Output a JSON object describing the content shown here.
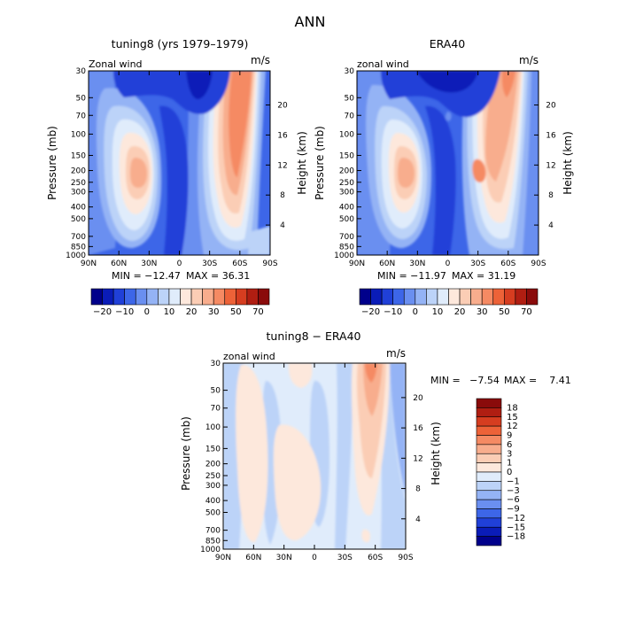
{
  "figure_title": "ANN",
  "chart_data": [
    {
      "type": "heatmap",
      "title": "tuning8 (yrs 1979–1979)",
      "field_label": "Zonal wind",
      "units": "m/s",
      "ylabel": "Pressure (mb)",
      "y2label": "Height (km)",
      "x_ticks": [
        "90N",
        "60N",
        "30N",
        "0",
        "30S",
        "60S",
        "90S"
      ],
      "y_ticks": [
        "30",
        "50",
        "70",
        "100",
        "150",
        "200",
        "250",
        "300",
        "400",
        "500",
        "700",
        "850",
        "1000"
      ],
      "y2_ticks": [
        "20",
        "16",
        "12",
        "8",
        "4"
      ],
      "min_label": "MIN = −12.47",
      "max_label": "MAX =  36.31",
      "min": -12.47,
      "max": 36.31,
      "colorbar_labels": [
        "−20",
        "−10",
        "0",
        "10",
        "20",
        "30",
        "50",
        "70"
      ],
      "colors": [
        "#00008b",
        "#0a1cb8",
        "#2040d8",
        "#3d66e8",
        "#6a8ff0",
        "#94b3f5",
        "#bcd3f8",
        "#e0ecfb",
        "#fde8dc",
        "#fbcdb5",
        "#f8ad8d",
        "#f58a63",
        "#ed6238",
        "#d63d20",
        "#b01e12",
        "#8a0b0b"
      ]
    },
    {
      "type": "heatmap",
      "title": "ERA40",
      "field_label": "zonal wind",
      "units": "m/s",
      "ylabel": "Pressure (mb)",
      "y2label": "Height (km)",
      "x_ticks": [
        "90N",
        "60N",
        "30N",
        "0",
        "30S",
        "60S",
        "90S"
      ],
      "y_ticks": [
        "30",
        "50",
        "70",
        "100",
        "150",
        "200",
        "250",
        "300",
        "400",
        "500",
        "700",
        "850",
        "1000"
      ],
      "y2_ticks": [
        "20",
        "16",
        "12",
        "8",
        "4"
      ],
      "min_label": "MIN = −11.97",
      "max_label": "MAX =  31.19",
      "min": -11.97,
      "max": 31.19,
      "colorbar_labels": [
        "−20",
        "−10",
        "0",
        "10",
        "20",
        "30",
        "50",
        "70"
      ],
      "colors": [
        "#00008b",
        "#0a1cb8",
        "#2040d8",
        "#3d66e8",
        "#6a8ff0",
        "#94b3f5",
        "#bcd3f8",
        "#e0ecfb",
        "#fde8dc",
        "#fbcdb5",
        "#f8ad8d",
        "#f58a63",
        "#ed6238",
        "#d63d20",
        "#b01e12",
        "#8a0b0b"
      ]
    },
    {
      "type": "heatmap",
      "title": "tuning8 − ERA40",
      "field_label": "zonal wind",
      "units": "m/s",
      "ylabel": "Pressure (mb)",
      "y2label": "Height (km)",
      "x_ticks": [
        "90N",
        "60N",
        "30N",
        "0",
        "30S",
        "60S",
        "90S"
      ],
      "y_ticks": [
        "30",
        "50",
        "70",
        "100",
        "150",
        "200",
        "250",
        "300",
        "400",
        "500",
        "700",
        "850",
        "1000"
      ],
      "y2_ticks": [
        "20",
        "16",
        "12",
        "8",
        "4"
      ],
      "min_label": "MIN =   −7.54",
      "max_label": "MAX =    7.41",
      "min": -7.54,
      "max": 7.41,
      "colorbar_labels": [
        "18",
        "15",
        "12",
        "9",
        "6",
        "3",
        "1",
        "0",
        "−1",
        "−3",
        "−6",
        "−9",
        "−12",
        "−15",
        "−18"
      ],
      "colors": [
        "#8a0b0b",
        "#b01e12",
        "#d63d20",
        "#ed6238",
        "#f58a63",
        "#f8ad8d",
        "#fbcdb5",
        "#fde8dc",
        "#e0ecfb",
        "#bcd3f8",
        "#94b3f5",
        "#6a8ff0",
        "#3d66e8",
        "#2040d8",
        "#0a1cb8",
        "#00008b"
      ]
    }
  ]
}
